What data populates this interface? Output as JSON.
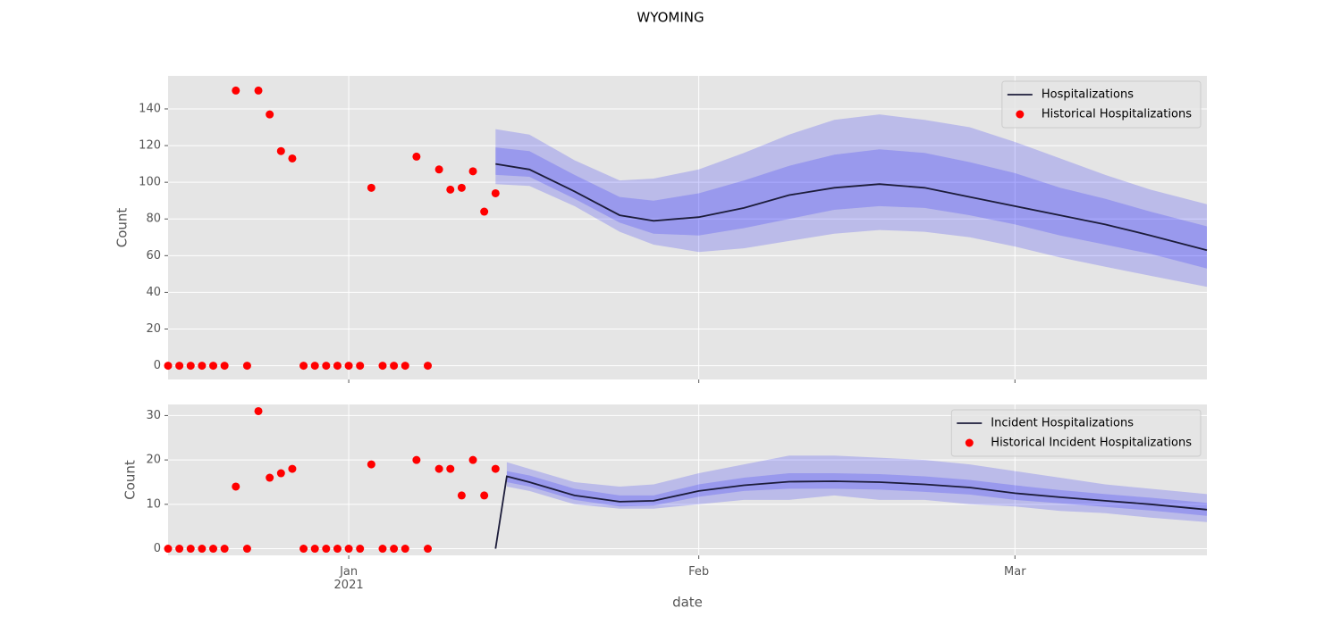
{
  "title": "WYOMING",
  "chart_data": [
    {
      "type": "line",
      "ylabel": "Count",
      "ylim": [
        -7.5,
        158
      ],
      "yticks": [
        0,
        20,
        40,
        60,
        80,
        100,
        120,
        140
      ],
      "grid": true,
      "legend": "upper right",
      "series": [
        {
          "name": "Hospitalizations",
          "mode": "line",
          "color": "#1c1c3a",
          "band_color": "#0000ff",
          "x": [
            "2021-01-14",
            "2021-01-17",
            "2021-01-21",
            "2021-01-25",
            "2021-01-28",
            "2021-02-01",
            "2021-02-05",
            "2021-02-09",
            "2021-02-13",
            "2021-02-17",
            "2021-02-21",
            "2021-02-25",
            "2021-03-01",
            "2021-03-05",
            "2021-03-09",
            "2021-03-13",
            "2021-03-18"
          ],
          "values": [
            110,
            107,
            95,
            82,
            79,
            81,
            86,
            93,
            97,
            99,
            97,
            92,
            87,
            82,
            77,
            71,
            63
          ],
          "bands": [
            {
              "lower": [
                99,
                98,
                87,
                73,
                66,
                62,
                64,
                68,
                72,
                74,
                73,
                70,
                65,
                59,
                54,
                49,
                43
              ],
              "upper": [
                129,
                126,
                112,
                101,
                102,
                107,
                116,
                126,
                134,
                137,
                134,
                130,
                122,
                113,
                104,
                96,
                88
              ]
            },
            {
              "lower": [
                104,
                103,
                91,
                78,
                72,
                71,
                75,
                80,
                85,
                87,
                86,
                82,
                77,
                71,
                66,
                61,
                53
              ],
              "upper": [
                119,
                117,
                104,
                92,
                90,
                94,
                101,
                109,
                115,
                118,
                116,
                111,
                105,
                97,
                91,
                84,
                76
              ]
            }
          ]
        },
        {
          "name": "Historical Hospitalizations",
          "mode": "markers",
          "color": "#ff0000",
          "x": [
            "2020-12-16",
            "2020-12-17",
            "2020-12-18",
            "2020-12-19",
            "2020-12-20",
            "2020-12-21",
            "2020-12-22",
            "2020-12-23",
            "2020-12-24",
            "2020-12-25",
            "2020-12-26",
            "2020-12-27",
            "2020-12-28",
            "2020-12-29",
            "2020-12-30",
            "2020-12-31",
            "2021-01-01",
            "2021-01-02",
            "2021-01-03",
            "2021-01-04",
            "2021-01-05",
            "2021-01-06",
            "2021-01-07",
            "2021-01-08",
            "2021-01-09",
            "2021-01-10",
            "2021-01-11",
            "2021-01-12",
            "2021-01-13",
            "2021-01-14"
          ],
          "values": [
            0,
            0,
            0,
            0,
            0,
            0,
            150,
            0,
            150,
            137,
            117,
            113,
            0,
            0,
            0,
            0,
            0,
            0,
            97,
            0,
            0,
            0,
            114,
            0,
            107,
            96,
            97,
            106,
            84,
            94
          ]
        }
      ]
    },
    {
      "type": "line",
      "ylabel": "Count",
      "xlabel": "date",
      "ylim": [
        -1.5,
        32.5
      ],
      "yticks": [
        0,
        10,
        20,
        30
      ],
      "grid": true,
      "legend": "upper right",
      "xlim": [
        "2020-12-16",
        "2021-03-18"
      ],
      "xticks": [
        {
          "value": "2021-01-01",
          "label": "Jan\n2021"
        },
        {
          "value": "2021-02-01",
          "label": "Feb"
        },
        {
          "value": "2021-03-01",
          "label": "Mar"
        }
      ],
      "series": [
        {
          "name": "Incident Hospitalizations",
          "mode": "line",
          "color": "#1c1c3a",
          "band_color": "#0000ff",
          "x": [
            "2021-01-14",
            "2021-01-15",
            "2021-01-17",
            "2021-01-21",
            "2021-01-25",
            "2021-01-28",
            "2021-02-01",
            "2021-02-05",
            "2021-02-09",
            "2021-02-13",
            "2021-02-17",
            "2021-02-21",
            "2021-02-25",
            "2021-03-01",
            "2021-03-05",
            "2021-03-09",
            "2021-03-13",
            "2021-03-18"
          ],
          "values": [
            0,
            16.3,
            15,
            12,
            10.6,
            10.8,
            13,
            14.3,
            15.1,
            15.2,
            15,
            14.5,
            13.8,
            12.5,
            11.6,
            10.8,
            10,
            8.8
          ],
          "bands": [
            {
              "lower": [
                null,
                14,
                13,
                10,
                9,
                9,
                10,
                11,
                11,
                12,
                11,
                11,
                10,
                9.5,
                8.5,
                8,
                7,
                6
              ],
              "upper": [
                null,
                19.5,
                18,
                15,
                14,
                14.5,
                17,
                19,
                21,
                21,
                20.5,
                20,
                19,
                17.5,
                16,
                14.5,
                13.5,
                12.3
              ]
            },
            {
              "lower": [
                null,
                15,
                14,
                11,
                9.5,
                9.7,
                11.7,
                13,
                13.5,
                13.5,
                13.3,
                12.8,
                12.2,
                11,
                10.2,
                9.4,
                8.6,
                7.4
              ],
              "upper": [
                null,
                17.5,
                16.5,
                13.5,
                12,
                12,
                14.5,
                16,
                17,
                17,
                16.8,
                16.3,
                15.5,
                14.3,
                13.2,
                12.3,
                11.5,
                10.3
              ]
            }
          ]
        },
        {
          "name": "Historical Incident Hospitalizations",
          "mode": "markers",
          "color": "#ff0000",
          "x": [
            "2020-12-16",
            "2020-12-17",
            "2020-12-18",
            "2020-12-19",
            "2020-12-20",
            "2020-12-21",
            "2020-12-22",
            "2020-12-23",
            "2020-12-24",
            "2020-12-25",
            "2020-12-26",
            "2020-12-27",
            "2020-12-28",
            "2020-12-29",
            "2020-12-30",
            "2020-12-31",
            "2021-01-01",
            "2021-01-02",
            "2021-01-03",
            "2021-01-04",
            "2021-01-05",
            "2021-01-06",
            "2021-01-07",
            "2021-01-08",
            "2021-01-09",
            "2021-01-10",
            "2021-01-11",
            "2021-01-12",
            "2021-01-13",
            "2021-01-14"
          ],
          "values": [
            0,
            0,
            0,
            0,
            0,
            0,
            14,
            0,
            31,
            16,
            17,
            18,
            0,
            0,
            0,
            0,
            0,
            0,
            19,
            0,
            0,
            0,
            20,
            0,
            18,
            18,
            12,
            20,
            12,
            18
          ]
        }
      ]
    }
  ]
}
